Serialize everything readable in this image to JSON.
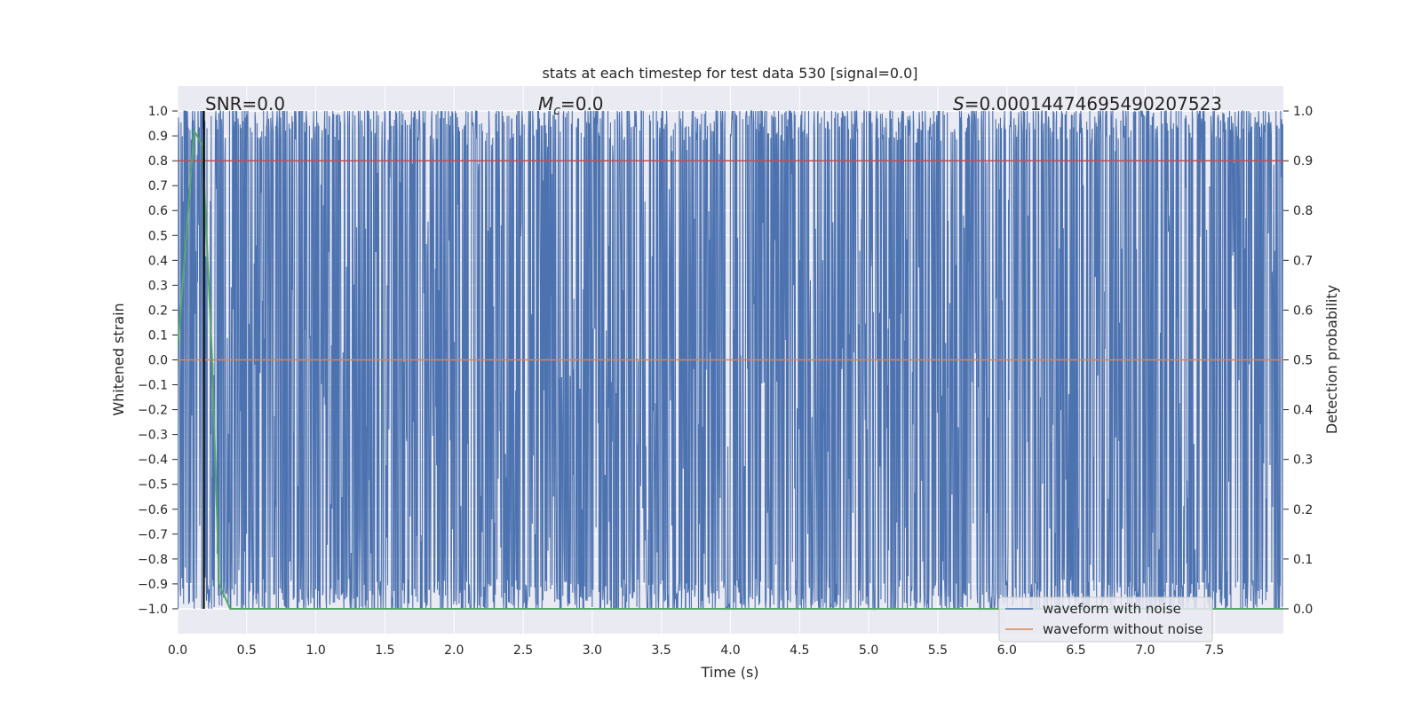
{
  "chart_data": {
    "type": "line",
    "title": "stats at each timestep for test data 530 [signal=0.0]",
    "xlabel": "Time (s)",
    "ylabel_left": "Whitened strain",
    "ylabel_right": "Detection probability",
    "xlim": [
      0.0,
      8.0
    ],
    "ylim_left": [
      -1.1,
      1.1
    ],
    "ylim_right": [
      -0.05,
      1.05
    ],
    "xticks": [
      0.0,
      0.5,
      1.0,
      1.5,
      2.0,
      2.5,
      3.0,
      3.5,
      4.0,
      4.5,
      5.0,
      5.5,
      6.0,
      6.5,
      7.0,
      7.5
    ],
    "xtick_labels": [
      "0.0",
      "0.5",
      "1.0",
      "1.5",
      "2.0",
      "2.5",
      "3.0",
      "3.5",
      "4.0",
      "4.5",
      "5.0",
      "5.5",
      "6.0",
      "6.5",
      "7.0",
      "7.5"
    ],
    "yticks_left": [
      1.0,
      0.9,
      0.8,
      0.7,
      0.6,
      0.5,
      0.4,
      0.3,
      0.2,
      0.1,
      0.0,
      -0.1,
      -0.2,
      -0.3,
      -0.4,
      -0.5,
      -0.6,
      -0.7,
      -0.8,
      -0.9,
      -1.0
    ],
    "ytick_labels_left": [
      "1.0",
      "0.9",
      "0.8",
      "0.7",
      "0.6",
      "0.5",
      "0.4",
      "0.3",
      "0.2",
      "0.1",
      "0.0",
      "−0.1",
      "−0.2",
      "−0.3",
      "−0.4",
      "−0.5",
      "−0.6",
      "−0.7",
      "−0.8",
      "−0.9",
      "−1.0"
    ],
    "yticks_right": [
      1.0,
      0.9,
      0.8,
      0.7,
      0.6,
      0.5,
      0.4,
      0.3,
      0.2,
      0.1,
      0.0
    ],
    "ytick_labels_right": [
      "1.0",
      "0.9",
      "0.8",
      "0.7",
      "0.6",
      "0.5",
      "0.4",
      "0.3",
      "0.2",
      "0.1",
      "0.0"
    ],
    "grid": true,
    "annotations": {
      "snr": "SNR=0.0",
      "mc_symbol": "M",
      "mc_sub": "c",
      "mc_value": "=0.0",
      "s_symbol": "S",
      "s_value": "=0.00014474695490207523"
    },
    "legend": {
      "placement": "lower-right",
      "entries": [
        {
          "label": "waveform with noise",
          "color": "#4c72b0"
        },
        {
          "label": "waveform without noise",
          "color": "#dd8452"
        }
      ]
    },
    "series": [
      {
        "name": "waveform with noise",
        "axis": "left",
        "color": "#4c72b0",
        "kind": "dense noise spanning -1.0 to 1.0"
      },
      {
        "name": "waveform without noise",
        "axis": "left",
        "color": "#dd8452",
        "x": [
          0.0,
          8.0
        ],
        "y": [
          0.0,
          0.0
        ]
      },
      {
        "axis": "right",
        "color": "#c44e52",
        "x": [
          0.0,
          8.0
        ],
        "y": [
          0.9,
          0.9
        ]
      },
      {
        "axis": "right",
        "color": "#55a868",
        "x": [
          0.0,
          0.12,
          0.18,
          0.25,
          0.3,
          0.38,
          8.0
        ],
        "y": [
          0.52,
          0.96,
          0.93,
          0.5,
          0.05,
          0.0,
          0.0
        ]
      },
      {
        "axis": "left",
        "color": "#000000",
        "x": [
          0.19,
          0.19
        ],
        "y": [
          -1.0,
          1.0
        ]
      }
    ],
    "colors": {
      "axes_bg": "#eaeaf2",
      "grid": "#ffffff",
      "noise": "#4c72b0",
      "clean": "#dd8452",
      "threshold": "#c44e52",
      "probability": "#55a868",
      "marker": "#000000"
    }
  }
}
